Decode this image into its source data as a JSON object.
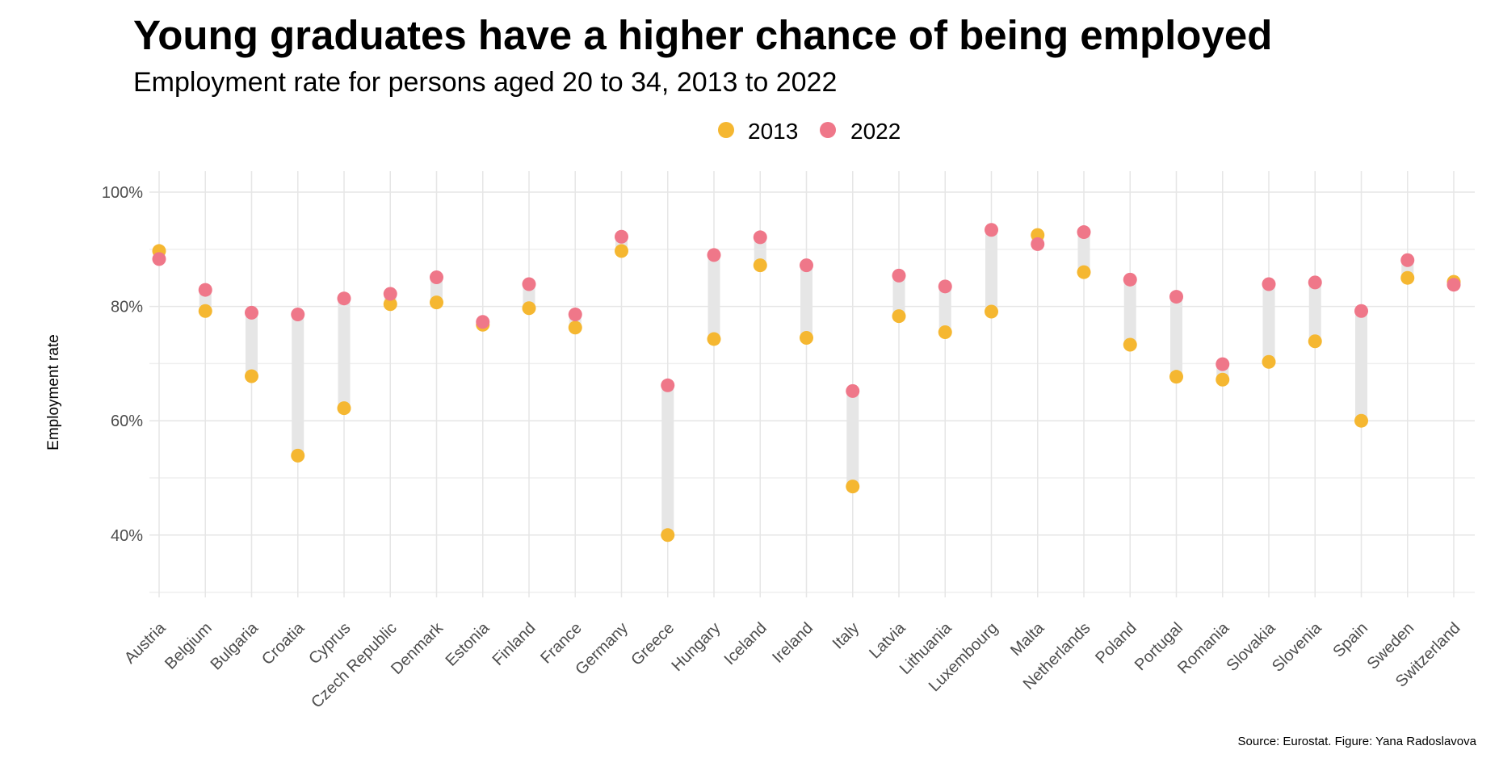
{
  "chart_data": {
    "type": "dumbbell",
    "title": "Young graduates have a higher chance of being employed",
    "subtitle": "Employment rate for persons aged 20 to 34, 2013 to 2022",
    "ylabel": "Employment rate",
    "xlabel": "",
    "caption": "Source: Eurostat. Figure: Yana Radoslavova",
    "ylim": [
      30,
      102
    ],
    "yticks": [
      40,
      60,
      80,
      100
    ],
    "ytick_labels": [
      "40%",
      "60%",
      "80%",
      "100%"
    ],
    "grid": true,
    "legend_position": "top",
    "categories": [
      "Austria",
      "Belgium",
      "Bulgaria",
      "Croatia",
      "Cyprus",
      "Czech Republic",
      "Denmark",
      "Estonia",
      "Finland",
      "France",
      "Germany",
      "Greece",
      "Hungary",
      "Iceland",
      "Ireland",
      "Italy",
      "Latvia",
      "Lithuania",
      "Luxembourg",
      "Malta",
      "Netherlands",
      "Poland",
      "Portugal",
      "Romania",
      "Slovakia",
      "Slovenia",
      "Spain",
      "Sweden",
      "Switzerland"
    ],
    "series": [
      {
        "name": "2013",
        "color": "#F5B731",
        "values": [
          89.7,
          79.2,
          67.8,
          53.9,
          62.2,
          80.4,
          80.7,
          76.8,
          79.7,
          76.3,
          89.7,
          40.0,
          74.3,
          87.2,
          74.5,
          48.5,
          78.3,
          75.5,
          79.1,
          92.5,
          86.0,
          73.3,
          67.7,
          67.2,
          70.3,
          73.9,
          60.0,
          85.0,
          84.3
        ]
      },
      {
        "name": "2022",
        "color": "#EF7789",
        "values": [
          88.3,
          82.9,
          78.9,
          78.6,
          81.4,
          82.2,
          85.1,
          77.3,
          83.9,
          78.6,
          92.2,
          66.2,
          89.0,
          92.1,
          87.2,
          65.2,
          85.4,
          83.5,
          93.4,
          90.9,
          93.0,
          84.7,
          81.7,
          69.9,
          83.9,
          84.2,
          79.2,
          88.1,
          83.8
        ]
      }
    ]
  }
}
